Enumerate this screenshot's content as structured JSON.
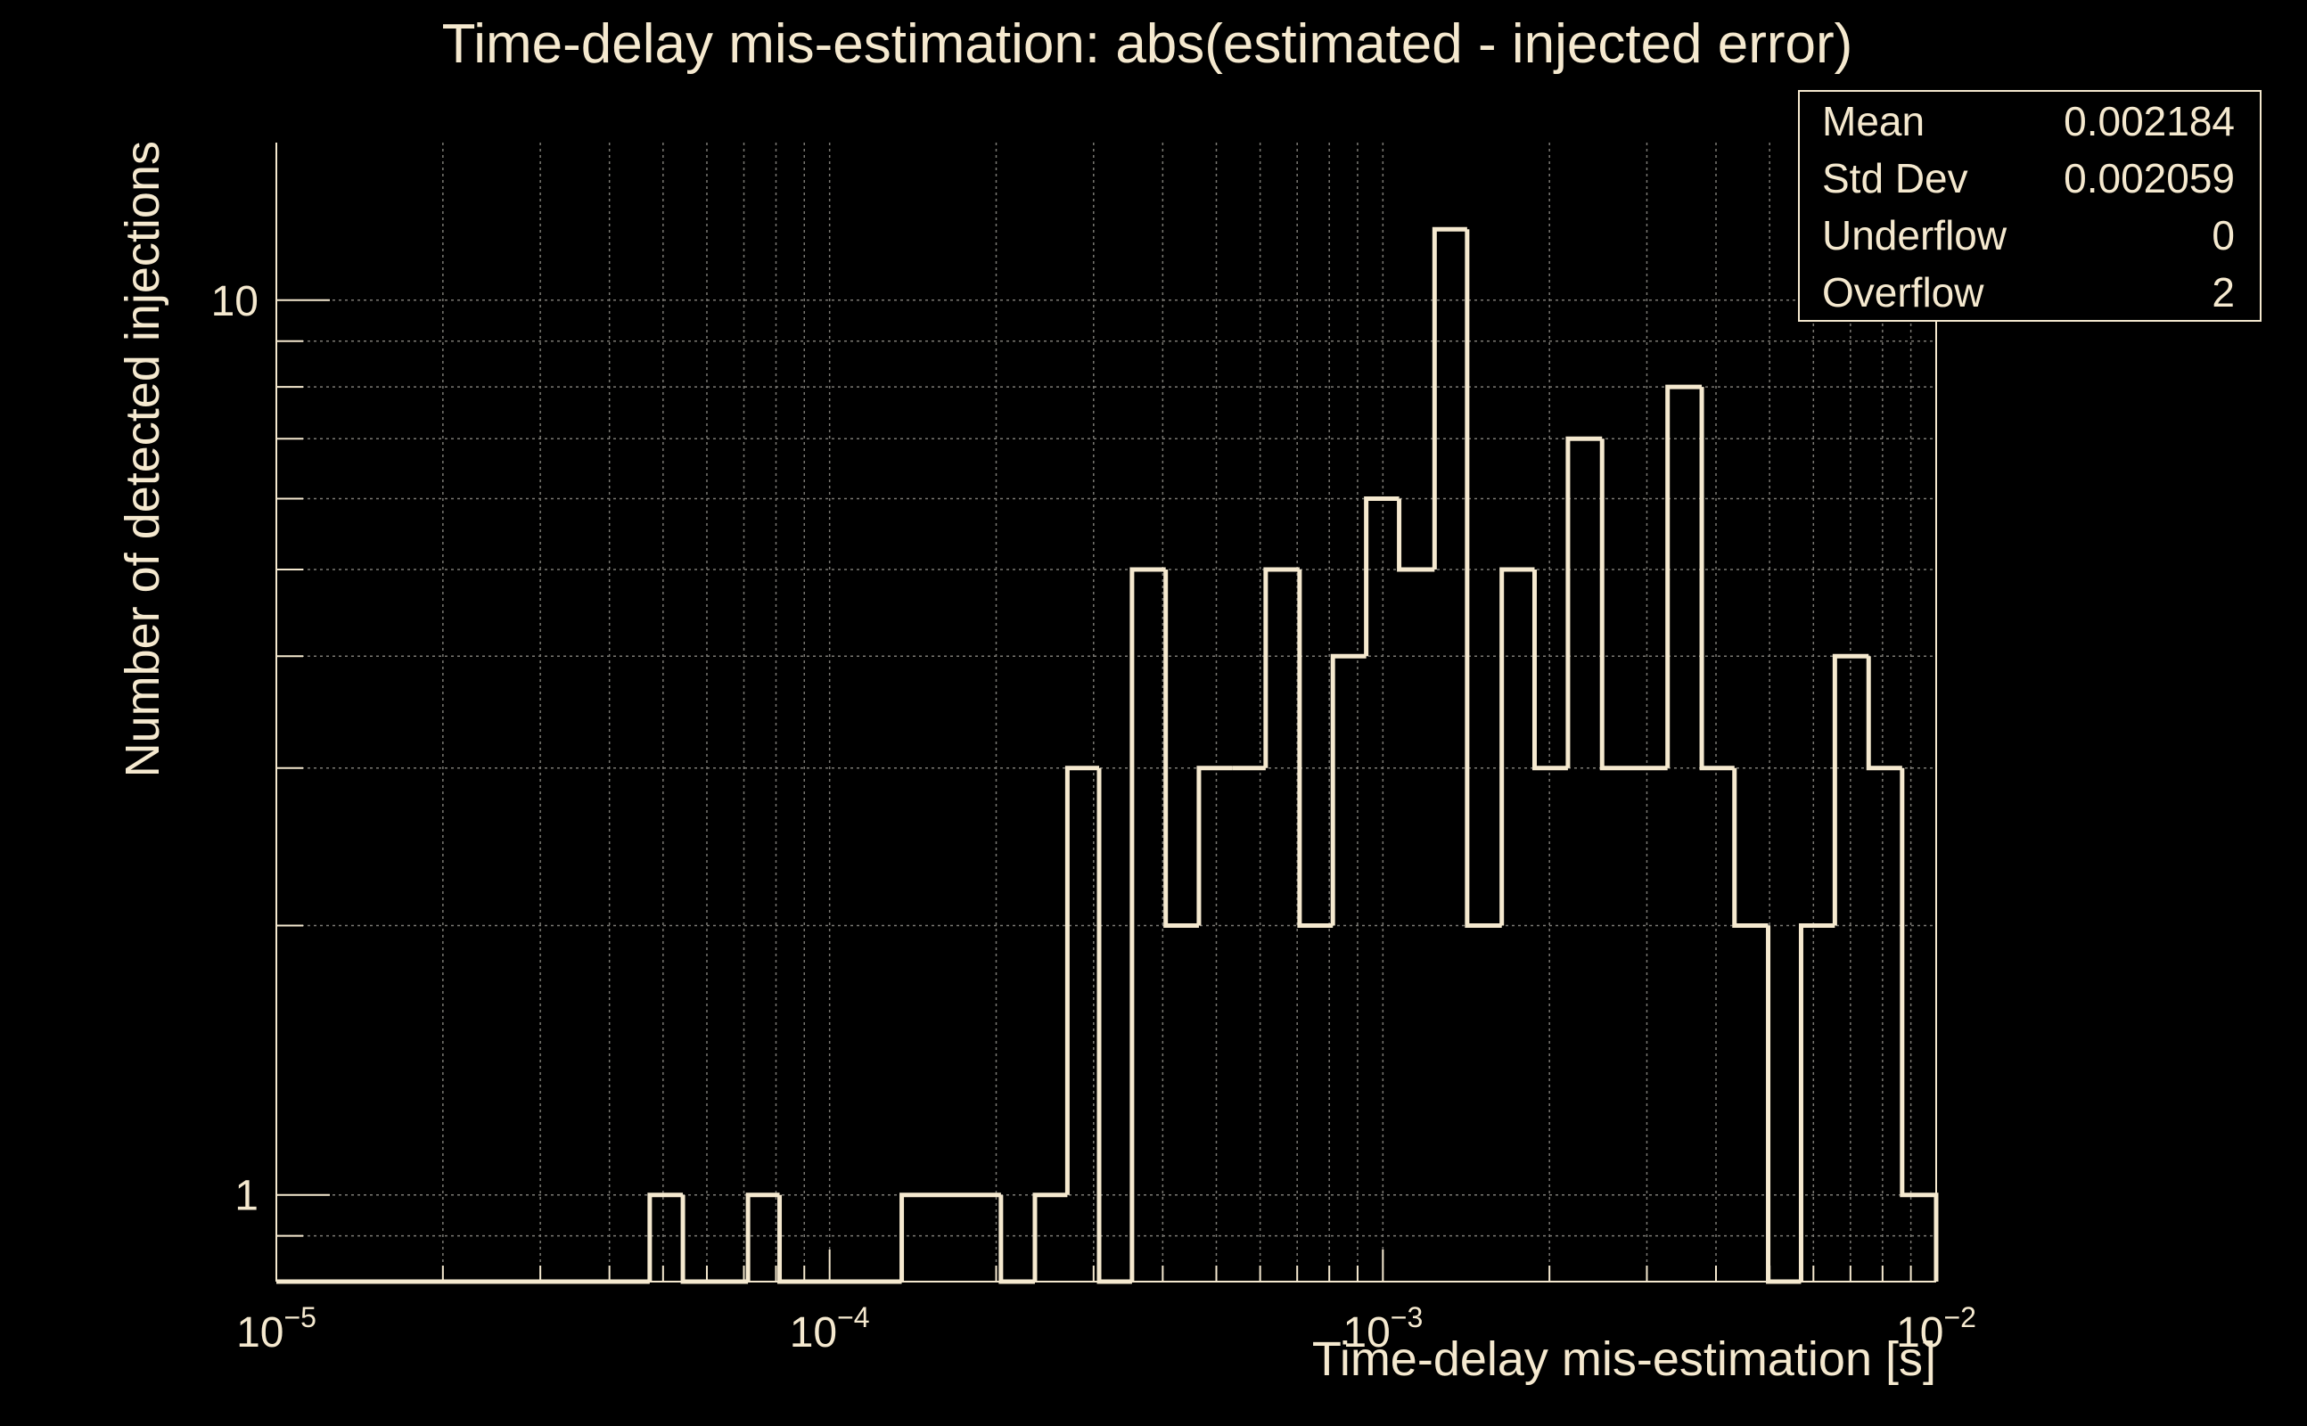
{
  "colors": {
    "background": "#000000",
    "foreground": "#f5e9cf",
    "grid": "#7c7a74"
  },
  "chart_data": {
    "type": "bar",
    "style": "step-histogram",
    "title": "Time-delay mis-estimation: abs(estimated - injected error)",
    "xlabel": "Time-delay mis-estimation [s]",
    "ylabel": "Number of detected injections",
    "x_scale": "log",
    "y_scale": "log",
    "xlim": [
      1e-05,
      0.01
    ],
    "ylim": [
      0.8,
      15
    ],
    "x_ticks": [
      {
        "value": 1e-05,
        "base": "10",
        "exp": "−5"
      },
      {
        "value": 0.0001,
        "base": "10",
        "exp": "−4"
      },
      {
        "value": 0.001,
        "base": "10",
        "exp": "−3"
      },
      {
        "value": 0.01,
        "base": "10",
        "exp": "−2"
      }
    ],
    "y_ticks": [
      {
        "value": 1,
        "label": "1"
      },
      {
        "value": 10,
        "label": "10"
      }
    ],
    "grid": true,
    "bin_edges": [
      1e-05,
      4.73e-05,
      5.43e-05,
      7.12e-05,
      8.12e-05,
      0.000135,
      0.000204,
      0.000235,
      0.000269,
      0.000307,
      0.000352,
      0.000405,
      0.000465,
      0.000535,
      0.000614,
      0.000707,
      0.000812,
      0.000933,
      0.00107,
      0.00124,
      0.00142,
      0.00164,
      0.00188,
      0.00216,
      0.00249,
      0.00327,
      0.00377,
      0.00432,
      0.00497,
      0.0057,
      0.00656,
      0.00755,
      0.00868,
      0.01
    ],
    "values": [
      0,
      1,
      0,
      1,
      0,
      1,
      0,
      1,
      3,
      0,
      5,
      2,
      3,
      3,
      5,
      2,
      4,
      6,
      5,
      12,
      2,
      5,
      3,
      7,
      3,
      8,
      3,
      2,
      0,
      2,
      4,
      3,
      1
    ],
    "stats": [
      {
        "label": "Mean",
        "value": "0.002184"
      },
      {
        "label": "Std Dev",
        "value": "0.002059"
      },
      {
        "label": "Underflow",
        "value": "0"
      },
      {
        "label": "Overflow",
        "value": "2"
      }
    ],
    "stats_placement": "top-right"
  }
}
